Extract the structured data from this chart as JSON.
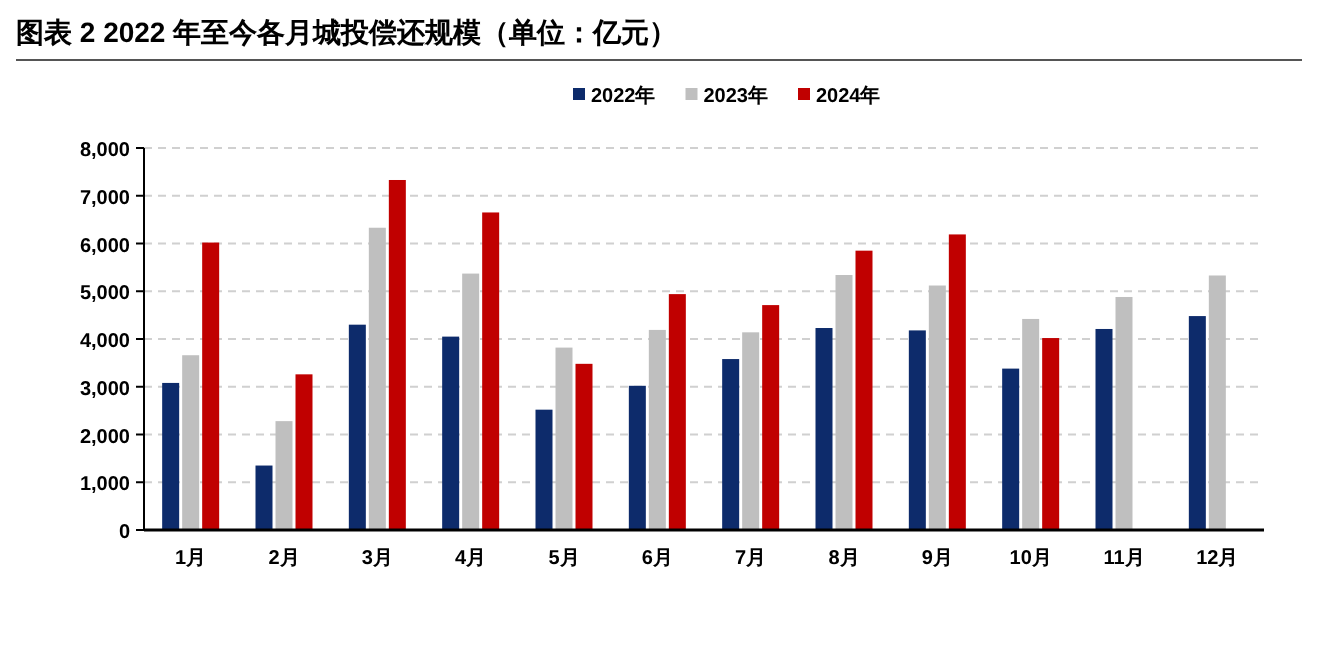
{
  "chart_data": {
    "type": "bar",
    "title": "图表 2 2022 年至今各月城投偿还规模（单位：亿元）",
    "categories": [
      "1月",
      "2月",
      "3月",
      "4月",
      "5月",
      "6月",
      "7月",
      "8月",
      "9月",
      "10月",
      "11月",
      "12月"
    ],
    "series": [
      {
        "name": "2022年",
        "color": "#0d2b6b",
        "values": [
          3080,
          1350,
          4300,
          4050,
          2520,
          3020,
          3580,
          4230,
          4180,
          3380,
          4210,
          4480
        ]
      },
      {
        "name": "2023年",
        "color": "#bfbfbf",
        "values": [
          3660,
          2280,
          6330,
          5370,
          3820,
          4190,
          4140,
          5340,
          5120,
          4420,
          4880,
          5330
        ]
      },
      {
        "name": "2024年",
        "color": "#c00000",
        "values": [
          6020,
          3260,
          7330,
          6650,
          3480,
          4940,
          4710,
          5850,
          6190,
          4020,
          null,
          null
        ]
      }
    ],
    "ylim": [
      0,
      8000
    ],
    "yticks": [
      0,
      {
        "value": 1000,
        "label": "1,000"
      },
      {
        "value": 2000,
        "label": "2,000"
      },
      {
        "value": 3000,
        "label": "3,000"
      },
      {
        "value": 4000,
        "label": "4,000"
      },
      {
        "value": 5000,
        "label": "5,000"
      },
      {
        "value": 6000,
        "label": "6,000"
      },
      {
        "value": 7000,
        "label": "7,000"
      },
      {
        "value": 8000,
        "label": "8,000"
      }
    ],
    "grid": "y",
    "legend": "top"
  }
}
